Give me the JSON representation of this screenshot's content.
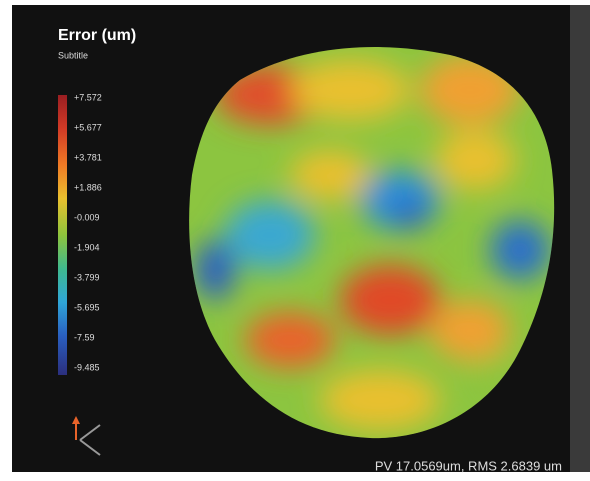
{
  "panel": {
    "title": "Error (um)",
    "subtitle": "Subtitle",
    "scale_labels": [
      "+7.572",
      "+5.677",
      "+3.781",
      "+1.886",
      "-0.009",
      "-1.904",
      "-3.799",
      "-5.695",
      "-7.59",
      "-9.485"
    ],
    "footer": "PV 17.0569um, RMS 2.6839 um"
  }
}
